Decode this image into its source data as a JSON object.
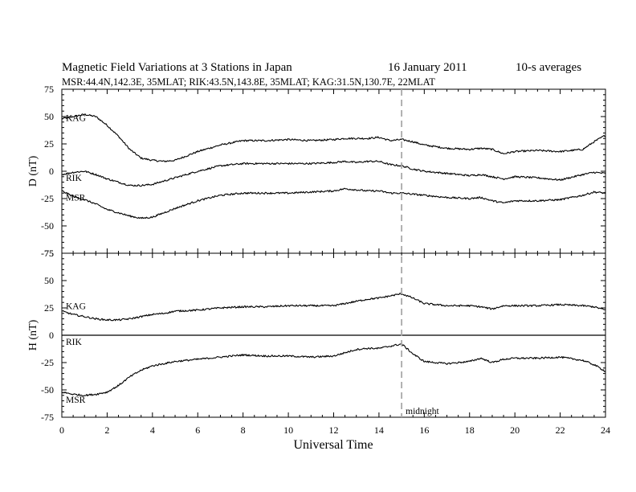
{
  "header": {
    "title": "Magnetic Field Variations at 3 Stations in Japan",
    "date": "16 January 2011",
    "averaging": "10-s averages",
    "subtitle": "MSR:44.4N,142.3E, 35MLAT;  RIK:43.5N,143.8E, 35MLAT;  KAG:31.5N,130.7E, 22MLAT"
  },
  "chart_data": {
    "type": "line",
    "title": "Magnetic Field Variations at 3 Stations in Japan",
    "xlabel": "Universal Time",
    "xlim": [
      0,
      24
    ],
    "x_ticks": [
      "0",
      "2",
      "4",
      "6",
      "8",
      "10",
      "12",
      "14",
      "16",
      "18",
      "20",
      "22",
      "24"
    ],
    "annotation": {
      "text": "midnight",
      "x": 15
    },
    "panels": [
      {
        "ylabel": "D (nT)",
        "ylim": [
          -75,
          75
        ],
        "y_ticks": [
          "75",
          "50",
          "25",
          "0",
          "-25",
          "-50",
          "-75"
        ],
        "zero_line": false,
        "series": [
          {
            "name": "KAG",
            "x": [
              0,
              0.5,
              1,
              1.5,
              2,
              2.5,
              3,
              3.5,
              4,
              4.5,
              5,
              6,
              7,
              8,
              9,
              10,
              11,
              12,
              12.5,
              13,
              13.5,
              14,
              14.5,
              15,
              15.5,
              16,
              17,
              18,
              18.5,
              19,
              19.5,
              20,
              21,
              22,
              23,
              23.5,
              24
            ],
            "y": [
              48,
              50,
              52,
              50,
              42,
              32,
              20,
              12,
              10,
              9,
              10,
              18,
              24,
              28,
              28,
              29,
              28,
              29,
              30,
              30,
              30,
              31,
              28,
              29,
              27,
              24,
              21,
              20,
              21,
              20,
              16,
              18,
              19,
              18,
              20,
              27,
              33
            ]
          },
          {
            "name": "RIK",
            "x": [
              0,
              0.5,
              1,
              1.5,
              2,
              2.5,
              3,
              3.5,
              4,
              4.5,
              5,
              6,
              7,
              8,
              9,
              10,
              11,
              12,
              12.5,
              13,
              13.5,
              14,
              14.5,
              15,
              15.5,
              16,
              17,
              18,
              18.5,
              19,
              19.5,
              20,
              21,
              22,
              23,
              23.5,
              24
            ],
            "y": [
              -3,
              -1,
              0,
              -3,
              -7,
              -10,
              -13,
              -13,
              -12,
              -9,
              -6,
              0,
              5,
              7,
              7,
              7,
              7,
              8,
              9,
              8,
              9,
              9,
              6,
              5,
              2,
              0,
              -2,
              -4,
              -3,
              -5,
              -7,
              -5,
              -6,
              -8,
              -3,
              -1,
              -2
            ]
          },
          {
            "name": "MSR",
            "x": [
              0,
              0.5,
              1,
              1.5,
              2,
              2.5,
              3,
              3.5,
              4,
              4.5,
              5,
              6,
              7,
              8,
              9,
              10,
              11,
              12,
              12.5,
              13,
              13.5,
              14,
              14.5,
              15,
              15.5,
              16,
              17,
              18,
              18.5,
              19,
              19.5,
              20,
              21,
              22,
              23,
              23.5,
              24
            ],
            "y": [
              -18,
              -23,
              -26,
              -30,
              -35,
              -38,
              -41,
              -43,
              -42,
              -38,
              -34,
              -27,
              -22,
              -20,
              -20,
              -20,
              -19,
              -18,
              -16,
              -17,
              -18,
              -18,
              -20,
              -20,
              -21,
              -22,
              -24,
              -25,
              -24,
              -27,
              -29,
              -27,
              -27,
              -26,
              -22,
              -19,
              -20
            ]
          }
        ],
        "labels": [
          {
            "text": "KAG",
            "y": 49
          },
          {
            "text": "RIK",
            "y": -6
          },
          {
            "text": "MSR",
            "y": -24
          }
        ]
      },
      {
        "ylabel": "H (nT)",
        "ylim": [
          -75,
          75
        ],
        "y_ticks": [
          "75",
          "50",
          "25",
          "0",
          "-25",
          "-50",
          "-75"
        ],
        "zero_line": true,
        "series": [
          {
            "name": "KAG",
            "x": [
              0,
              0.5,
              1,
              1.5,
              2,
              2.5,
              3,
              3.5,
              4,
              4.5,
              5,
              6,
              7,
              8,
              9,
              10,
              11,
              12,
              12.5,
              13,
              13.5,
              14,
              14.5,
              15,
              15.5,
              16,
              17,
              18,
              18.5,
              19,
              19.5,
              20,
              21,
              22,
              23,
              23.5,
              24
            ],
            "y": [
              22,
              19,
              17,
              15,
              14,
              14,
              15,
              17,
              19,
              20,
              22,
              23,
              25,
              26,
              26,
              27,
              27,
              27,
              29,
              31,
              33,
              34,
              36,
              38,
              34,
              29,
              27,
              27,
              26,
              24,
              27,
              27,
              27,
              28,
              27,
              26,
              23
            ]
          },
          {
            "name": "RIK",
            "x": [
              0,
              24
            ],
            "y": [
              0,
              0
            ]
          },
          {
            "name": "MSR",
            "x": [
              0,
              0.5,
              1,
              1.5,
              2,
              2.5,
              3,
              3.5,
              4,
              4.5,
              5,
              6,
              7,
              8,
              9,
              10,
              11,
              12,
              12.5,
              13,
              13.5,
              14,
              14.5,
              15,
              15.5,
              16,
              17,
              18,
              18.5,
              19,
              19.5,
              20,
              21,
              22,
              23,
              23.5,
              24
            ],
            "y": [
              -52,
              -54,
              -55,
              -54,
              -52,
              -46,
              -38,
              -32,
              -28,
              -26,
              -24,
              -22,
              -20,
              -18,
              -19,
              -19,
              -20,
              -19,
              -16,
              -13,
              -12,
              -12,
              -10,
              -8,
              -17,
              -24,
              -26,
              -24,
              -21,
              -25,
              -22,
              -21,
              -21,
              -20,
              -23,
              -27,
              -33
            ]
          }
        ],
        "labels": [
          {
            "text": "KAG",
            "y": 27
          },
          {
            "text": "RIK",
            "y": -6
          },
          {
            "text": "MSR",
            "y": -59
          }
        ]
      }
    ]
  }
}
